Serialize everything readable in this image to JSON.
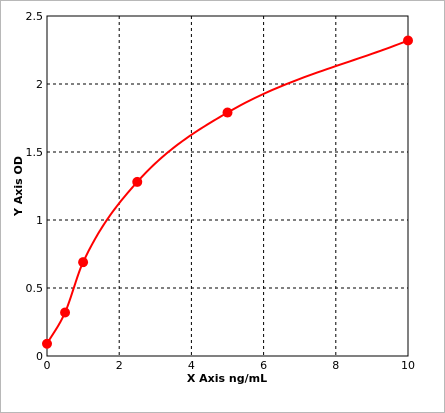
{
  "chart_data": {
    "type": "scatter",
    "title": "",
    "xlabel": "X Axis ng/mL",
    "ylabel": "Y Axis OD",
    "xlim": [
      0,
      10
    ],
    "ylim": [
      0,
      2.5
    ],
    "x_ticks": [
      0,
      2,
      4,
      6,
      8,
      10
    ],
    "y_ticks": [
      0,
      0.5,
      1,
      1.5,
      2,
      2.5
    ],
    "x_tick_labels": [
      "0",
      "2",
      "4",
      "6",
      "8",
      "10"
    ],
    "y_tick_labels": [
      "0",
      "0.5",
      "1",
      "1.5",
      "2",
      "2.5"
    ],
    "grid": true,
    "legend": "none",
    "series": [
      {
        "marker_color": "#ff0000",
        "line_color": "#ff0000",
        "x": [
          0,
          0.5,
          1,
          2.5,
          5,
          10
        ],
        "y": [
          0.09,
          0.32,
          0.69,
          1.28,
          1.79,
          2.32
        ]
      }
    ]
  }
}
